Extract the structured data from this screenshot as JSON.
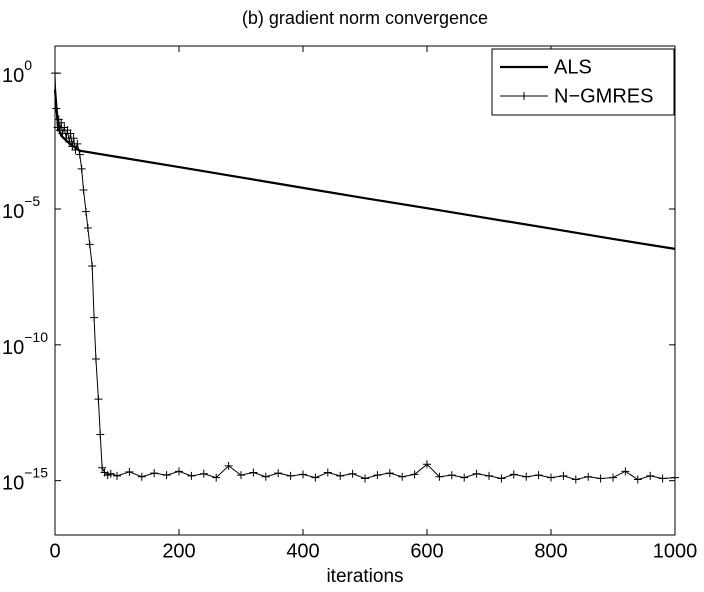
{
  "chart_data": {
    "type": "line",
    "title": "(b) gradient norm convergence",
    "x_label": "iterations",
    "xlim": [
      0,
      1000
    ],
    "xticks": [
      0,
      200,
      400,
      600,
      800,
      1000
    ],
    "ylim": [
      1e-17,
      10
    ],
    "yscale": "log",
    "yticks": [
      {
        "value": 1,
        "label": "10^0"
      },
      {
        "value": 1e-05,
        "label": "10^−5"
      },
      {
        "value": 1e-10,
        "label": "10^−10"
      },
      {
        "value": 1e-15,
        "label": "10^−15"
      }
    ],
    "legend": "northeast",
    "series": [
      {
        "name": "ALS",
        "color": "#000000",
        "marker": "none",
        "x": [
          0,
          5,
          10,
          20,
          30,
          40,
          100,
          200,
          300,
          400,
          500,
          600,
          700,
          800,
          900,
          1000
        ],
        "values": [
          0.25,
          0.01,
          0.005,
          0.003,
          0.002,
          0.0014,
          0.00083,
          0.00035,
          0.000145,
          6e-05,
          2.5e-05,
          1.07e-05,
          4.5e-06,
          1.9e-06,
          7.9e-07,
          3.4e-07
        ]
      },
      {
        "name": "N−GMRES",
        "color": "#000000",
        "marker": "+",
        "x": [
          0,
          2,
          4,
          6,
          8,
          10,
          12,
          15,
          18,
          20,
          23,
          25,
          28,
          30,
          33,
          36,
          40,
          43,
          46,
          50,
          53,
          56,
          60,
          63,
          66,
          70,
          73,
          76,
          80,
          85,
          90,
          100,
          120,
          140,
          160,
          180,
          200,
          220,
          240,
          260,
          280,
          300,
          320,
          340,
          360,
          380,
          400,
          420,
          440,
          460,
          480,
          500,
          520,
          540,
          560,
          580,
          600,
          620,
          640,
          660,
          680,
          700,
          720,
          740,
          760,
          780,
          800,
          820,
          840,
          860,
          880,
          900,
          920,
          940,
          960,
          980,
          1000
        ],
        "values": [
          1,
          0.05,
          0.01,
          0.02,
          0.008,
          0.015,
          0.006,
          0.01,
          0.004,
          0.008,
          0.003,
          0.006,
          0.002,
          0.004,
          0.0015,
          0.0025,
          0.001,
          0.0003,
          5e-05,
          8e-06,
          2e-06,
          5e-07,
          8e-08,
          1e-09,
          3e-11,
          1e-12,
          5e-14,
          3e-15,
          2e-15,
          1.6e-15,
          1.8e-15,
          1.5e-15,
          2.1e-15,
          1.4e-15,
          1.9e-15,
          1.6e-15,
          2.2e-15,
          1.5e-15,
          1.8e-15,
          1.3e-15,
          3.5e-15,
          1.6e-15,
          2e-15,
          1.4e-15,
          1.9e-15,
          1.5e-15,
          1.7e-15,
          1.3e-15,
          2e-15,
          1.5e-15,
          1.8e-15,
          1.2e-15,
          1.6e-15,
          1.9e-15,
          1.4e-15,
          1.7e-15,
          4e-15,
          1.4e-15,
          1.6e-15,
          1.3e-15,
          1.8e-15,
          1.5e-15,
          1.2e-15,
          1.7e-15,
          1.4e-15,
          1.6e-15,
          1.3e-15,
          1.5e-15,
          1.1e-15,
          1.4e-15,
          1.2e-15,
          1.3e-15,
          2.2e-15,
          1.1e-15,
          1.5e-15,
          1.2e-15,
          1.3e-15
        ]
      }
    ]
  }
}
